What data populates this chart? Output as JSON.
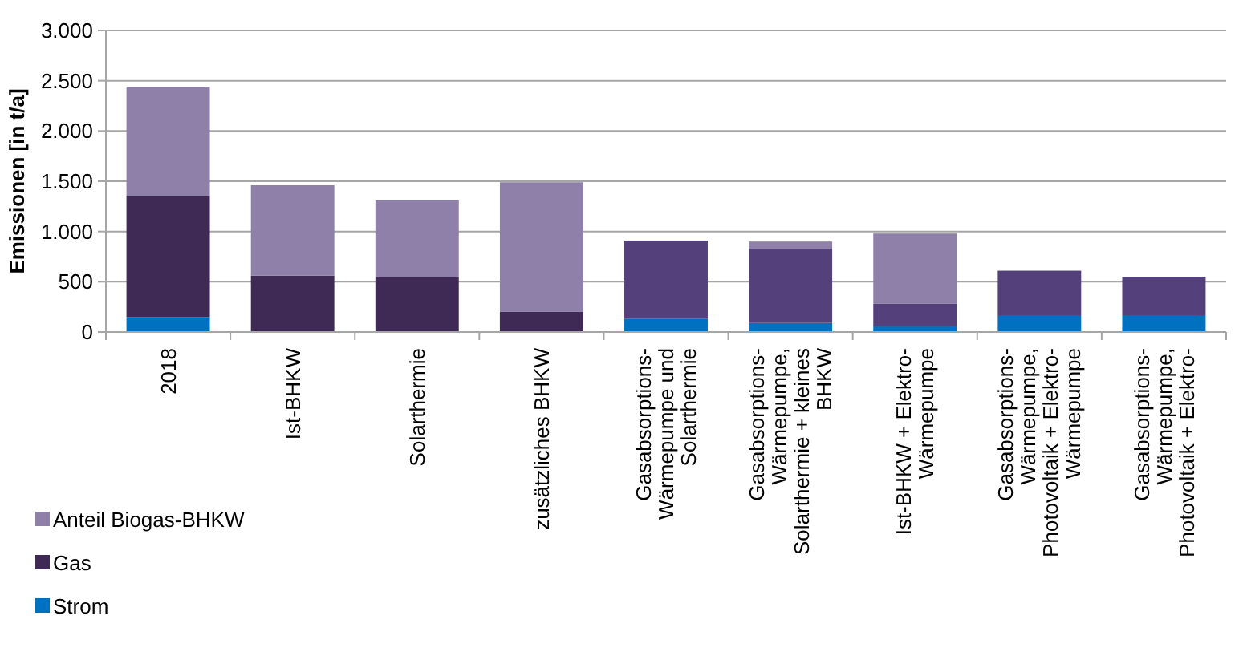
{
  "chart_data": {
    "type": "bar",
    "stacked": true,
    "ylabel": "Emissionen [in t/a]",
    "categories": [
      "2018",
      "Ist-BHKW",
      "Solarthermie",
      "zusätzliches BHKW",
      "Gasabsorptions-Wärmepumpe und Solarthermie",
      "Gasabsorptions-Wärmepumpe, Solarthermie + kleines BHKW",
      "Ist-BHKW + Elektro-Wärmepumpe",
      "Gasabsorptions-Wärmepumpe, Photovoltaik + Elektro-Wärmepumpe",
      "Gasabsorptions-Wärmepumpe, Photovoltaik + Elektro-"
    ],
    "series": [
      {
        "name": "Strom",
        "color": "#0070c0",
        "values": [
          150,
          0,
          0,
          0,
          130,
          90,
          60,
          160,
          160
        ]
      },
      {
        "name": "Gas",
        "color": "#3f2a56",
        "values": [
          1200,
          560,
          550,
          200,
          0,
          0,
          0,
          0,
          0
        ]
      },
      {
        "color": "#54407a",
        "values": [
          0,
          0,
          0,
          0,
          780,
          740,
          220,
          450,
          390
        ]
      },
      {
        "name": "Anteil Biogas-BHKW",
        "color": "#8e80a8",
        "values": [
          1090,
          900,
          760,
          1290,
          0,
          70,
          700,
          0,
          0
        ]
      }
    ],
    "ylim": [
      0,
      3000
    ],
    "yticks": [
      {
        "value": 0,
        "label": "0"
      },
      {
        "value": 500,
        "label": "500"
      },
      {
        "value": 1000,
        "label": "1.000"
      },
      {
        "value": 1500,
        "label": "1.500"
      },
      {
        "value": 2000,
        "label": "2.000"
      },
      {
        "value": 2500,
        "label": "2.500"
      },
      {
        "value": 3000,
        "label": "3.000"
      }
    ],
    "grid": "y",
    "legend": "bottom left"
  }
}
